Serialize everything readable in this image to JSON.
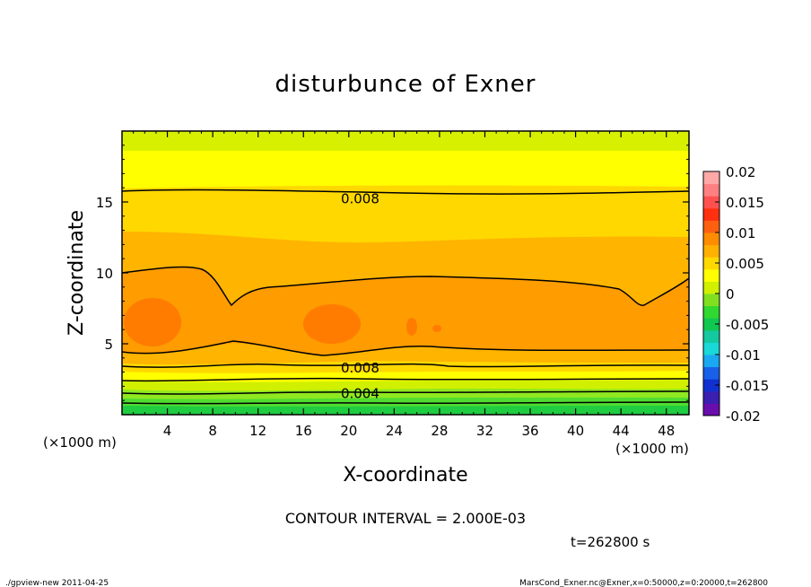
{
  "chart_data": {
    "type": "heatmap",
    "title": "disturbunce of Exner",
    "xlabel": "X-coordinate",
    "ylabel": "Z-coordinate",
    "x_unit_left": "(×1000 m)",
    "x_unit_right": "(×1000 m)",
    "xlim": [
      0,
      50
    ],
    "ylim": [
      0,
      20
    ],
    "x_ticks": [
      "4",
      "8",
      "12",
      "16",
      "20",
      "24",
      "28",
      "32",
      "36",
      "40",
      "44",
      "48"
    ],
    "x_tick_values": [
      4,
      8,
      12,
      16,
      20,
      24,
      28,
      32,
      36,
      40,
      44,
      48
    ],
    "y_ticks": [
      "5",
      "10",
      "15"
    ],
    "y_tick_values": [
      5,
      10,
      15
    ],
    "colorbar": {
      "ticks": [
        "0.02",
        "0.015",
        "0.01",
        "0.005",
        "0",
        "-0.005",
        "-0.01",
        "-0.015",
        "-0.02"
      ],
      "tick_values": [
        0.02,
        0.015,
        0.01,
        0.005,
        0,
        -0.005,
        -0.01,
        -0.015,
        -0.02
      ],
      "range": [
        -0.02,
        0.02
      ],
      "colors": [
        "#6a0dad",
        "#3a1fb0",
        "#1030d0",
        "#1860e8",
        "#1aa8f0",
        "#18d8d8",
        "#14c8a0",
        "#10c850",
        "#30d830",
        "#80e020",
        "#d0f000",
        "#ffff00",
        "#ffd800",
        "#ffb000",
        "#ff8c00",
        "#ff6010",
        "#ff3010",
        "#ff5050",
        "#ff8080",
        "#ffa8a8"
      ]
    },
    "contour_labels": [
      {
        "text": "0.008",
        "x": 21,
        "z": 15.3
      },
      {
        "text": "0.008",
        "x": 21,
        "z": 3.35
      },
      {
        "text": "0.004",
        "x": 21,
        "z": 1.55
      }
    ],
    "contour_interval_text": "CONTOUR INTERVAL = 2.000E-03",
    "time_text": "t=262800 s"
  },
  "footer": {
    "left": "./gpview-new  2011-04-25",
    "right": "MarsCond_Exner.nc@Exner,x=0:50000,z=0:20000,t=262800"
  }
}
